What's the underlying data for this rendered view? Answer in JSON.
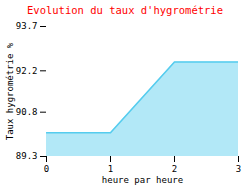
{
  "chart_data": {
    "type": "area",
    "title": "Evolution du taux d'hygrométrie",
    "xlabel": "heure par heure",
    "ylabel": "Taux hygrométrie %",
    "x": [
      0,
      1,
      2,
      3
    ],
    "series": [
      {
        "color": "#55ccee",
        "values": [
          90.1,
          90.1,
          92.5,
          92.5
        ]
      }
    ],
    "xlim": [
      0,
      3
    ],
    "ylim": [
      89.3,
      93.7
    ],
    "xticks": [
      0,
      1,
      2,
      3
    ],
    "yticks": [
      89.3,
      90.8,
      92.2,
      93.7
    ],
    "grid": false
  }
}
